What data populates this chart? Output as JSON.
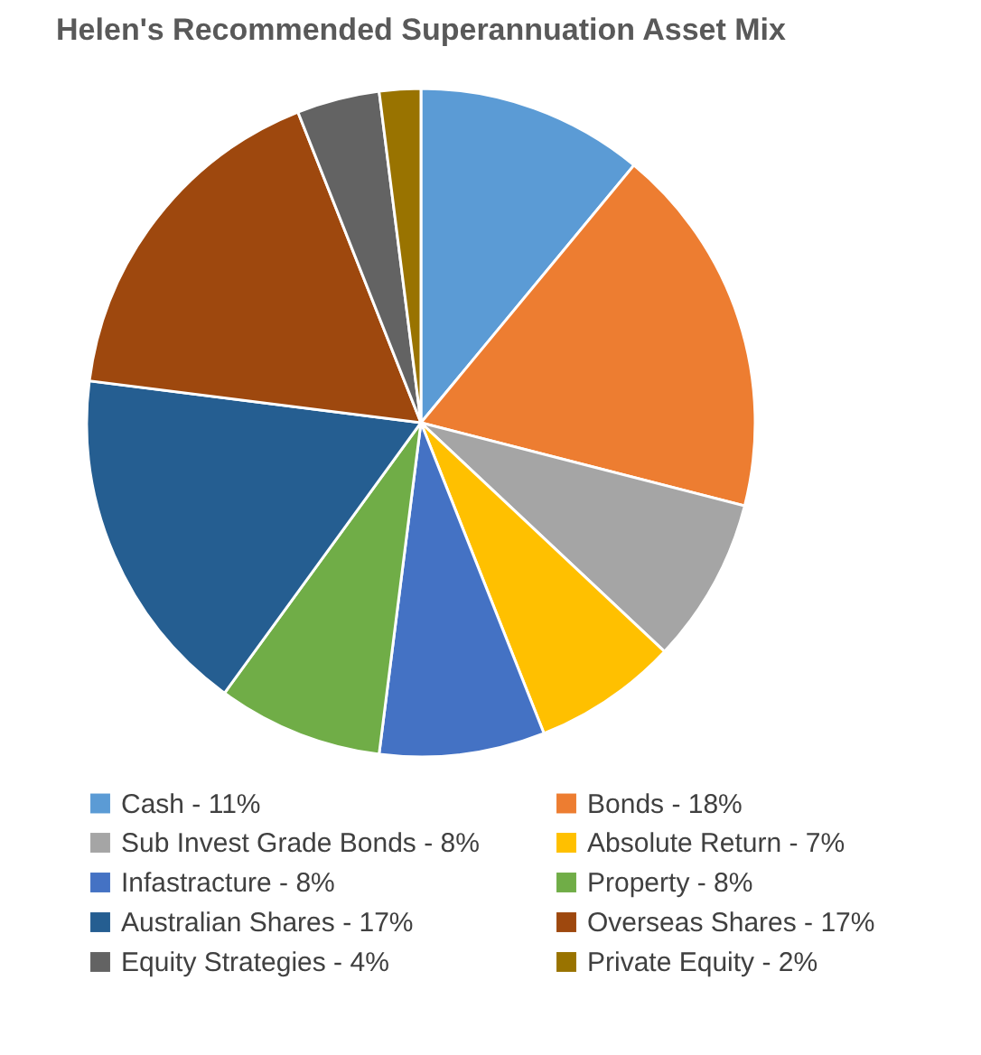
{
  "chart_data": {
    "type": "pie",
    "title": "Helen's Recommended Superannuation Asset Mix",
    "categories": [
      "Cash - 11%",
      "Bonds - 18%",
      "Sub Invest Grade Bonds - 8%",
      "Absolute Return - 7%",
      "Infastracture - 8%",
      "Property - 8%",
      "Australian Shares - 17%",
      "Overseas Shares - 17%",
      "Equity Strategies - 4%",
      "Private Equity - 2%"
    ],
    "values": [
      11,
      18,
      8,
      7,
      8,
      8,
      17,
      17,
      4,
      2
    ],
    "colors": [
      "#5b9bd5",
      "#ed7d31",
      "#a5a5a5",
      "#ffc000",
      "#4472c4",
      "#70ad47",
      "#255e91",
      "#9e480e",
      "#636363",
      "#997300"
    ],
    "legend": "bottom"
  }
}
